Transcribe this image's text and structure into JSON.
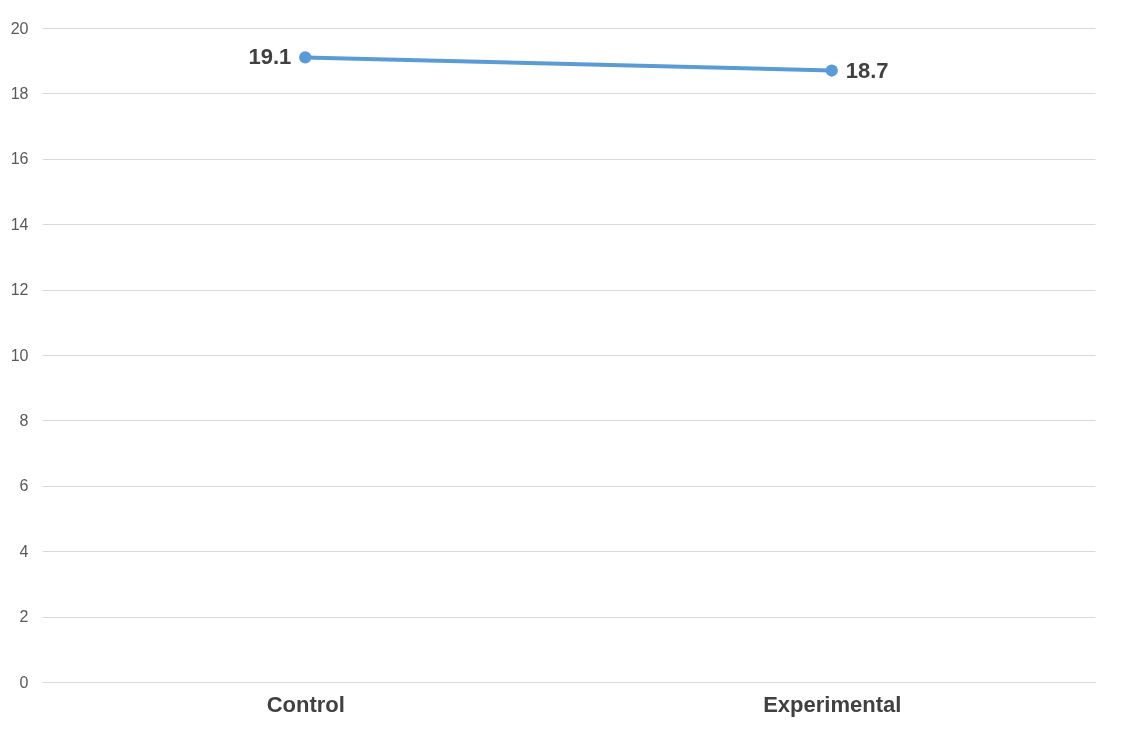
{
  "chart_data": {
    "type": "line",
    "categories": [
      "Control",
      "Experimental"
    ],
    "series": [
      {
        "color": "#5b9bd5",
        "values": [
          19.1,
          18.7
        ]
      }
    ],
    "ylim": [
      0,
      20
    ],
    "yticks": [
      0,
      2,
      4,
      6,
      8,
      10,
      12,
      14,
      16,
      18,
      20
    ],
    "grid": "y",
    "marker": "circle",
    "line_style": "solid",
    "data_labels": true
  }
}
